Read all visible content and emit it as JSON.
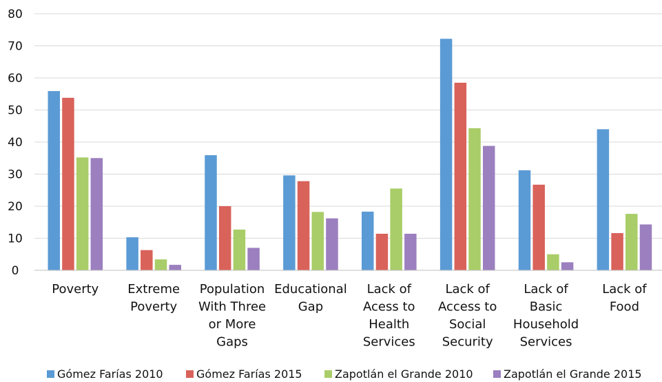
{
  "chart_data": {
    "type": "bar",
    "categories": [
      [
        "Poverty"
      ],
      [
        "Extreme",
        "Poverty"
      ],
      [
        "Population",
        "With Three",
        "or More",
        "Gaps"
      ],
      [
        "Educational",
        "Gap"
      ],
      [
        "Lack of",
        "Acess to",
        "Health",
        "Services"
      ],
      [
        "Lack of",
        "Access to",
        "Social",
        "Security"
      ],
      [
        "Lack of",
        "Basic",
        "Household",
        "Services"
      ],
      [
        "Lack of",
        "Food"
      ]
    ],
    "series": [
      {
        "name": "Gómez Farías 2010",
        "color": "#5b9bd5",
        "values": [
          55.9,
          10.3,
          35.9,
          29.6,
          18.3,
          72.2,
          31.2,
          44.0
        ]
      },
      {
        "name": "Gómez Farías 2015",
        "color": "#d9625a",
        "values": [
          53.8,
          6.3,
          20.0,
          27.8,
          11.4,
          58.5,
          26.7,
          11.6
        ]
      },
      {
        "name": "Zapotlán el Grande 2010",
        "color": "#a9cd68",
        "values": [
          35.2,
          3.4,
          12.7,
          18.2,
          25.5,
          44.3,
          5.0,
          17.6
        ]
      },
      {
        "name": "Zapotlán el Grande 2015",
        "color": "#9b7fbf",
        "values": [
          35.0,
          1.7,
          7.0,
          16.2,
          11.4,
          38.8,
          2.5,
          14.3
        ]
      }
    ],
    "yticks": [
      "0",
      "10",
      "20",
      "30",
      "40",
      "50",
      "60",
      "70",
      "80"
    ],
    "ylim": [
      0,
      80
    ],
    "grid": true,
    "legend_position": "bottom"
  }
}
